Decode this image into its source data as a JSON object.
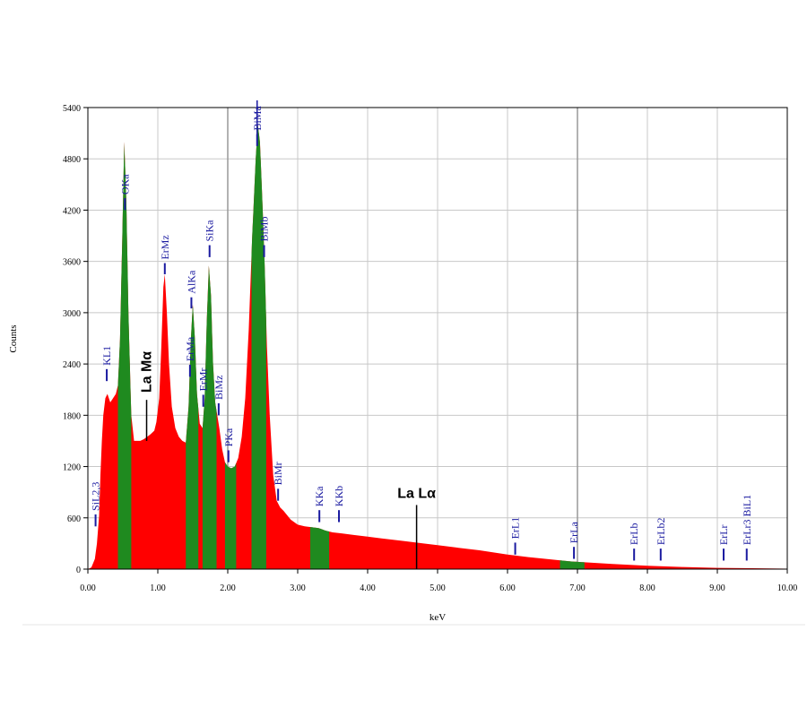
{
  "chart_data": {
    "type": "area",
    "xlabel": "keV",
    "ylabel": "Counts",
    "xlim": [
      0,
      10
    ],
    "ylim": [
      0,
      5400
    ],
    "x_ticks": [
      "0.00",
      "1.00",
      "2.00",
      "3.00",
      "4.00",
      "5.00",
      "6.00",
      "7.00",
      "8.00",
      "9.00",
      "10.00"
    ],
    "y_ticks": [
      "0",
      "600",
      "1200",
      "1800",
      "2400",
      "3000",
      "3600",
      "4200",
      "4800",
      "5400"
    ],
    "grid": true,
    "colors": {
      "spectrum": "#ff0000",
      "peak_region": "#1f8a1f",
      "peak_marker": "#1a1aa0",
      "annotation": "#000000"
    },
    "spectrum": [
      [
        0.0,
        0
      ],
      [
        0.05,
        20
      ],
      [
        0.1,
        120
      ],
      [
        0.13,
        300
      ],
      [
        0.16,
        620
      ],
      [
        0.18,
        1100
      ],
      [
        0.2,
        1500
      ],
      [
        0.22,
        1800
      ],
      [
        0.25,
        2000
      ],
      [
        0.28,
        2050
      ],
      [
        0.32,
        1950
      ],
      [
        0.36,
        2000
      ],
      [
        0.4,
        2050
      ],
      [
        0.43,
        2150
      ],
      [
        0.46,
        2700
      ],
      [
        0.49,
        3800
      ],
      [
        0.52,
        5000
      ],
      [
        0.55,
        4300
      ],
      [
        0.58,
        3000
      ],
      [
        0.62,
        1800
      ],
      [
        0.66,
        1500
      ],
      [
        0.7,
        1500
      ],
      [
        0.75,
        1500
      ],
      [
        0.8,
        1520
      ],
      [
        0.85,
        1550
      ],
      [
        0.9,
        1580
      ],
      [
        0.95,
        1620
      ],
      [
        0.98,
        1720
      ],
      [
        1.02,
        2000
      ],
      [
        1.05,
        2600
      ],
      [
        1.08,
        3300
      ],
      [
        1.1,
        3450
      ],
      [
        1.13,
        3000
      ],
      [
        1.16,
        2400
      ],
      [
        1.2,
        1900
      ],
      [
        1.25,
        1650
      ],
      [
        1.3,
        1550
      ],
      [
        1.35,
        1500
      ],
      [
        1.4,
        1480
      ],
      [
        1.44,
        1900
      ],
      [
        1.47,
        2650
      ],
      [
        1.5,
        3100
      ],
      [
        1.53,
        2700
      ],
      [
        1.56,
        2050
      ],
      [
        1.6,
        1700
      ],
      [
        1.64,
        1650
      ],
      [
        1.67,
        2000
      ],
      [
        1.7,
        2900
      ],
      [
        1.73,
        3550
      ],
      [
        1.76,
        3200
      ],
      [
        1.79,
        2400
      ],
      [
        1.82,
        1950
      ],
      [
        1.85,
        1800
      ],
      [
        1.88,
        1650
      ],
      [
        1.92,
        1400
      ],
      [
        1.96,
        1250
      ],
      [
        2.0,
        1200
      ],
      [
        2.05,
        1180
      ],
      [
        2.1,
        1200
      ],
      [
        2.15,
        1300
      ],
      [
        2.2,
        1550
      ],
      [
        2.25,
        2000
      ],
      [
        2.3,
        2800
      ],
      [
        2.35,
        3900
      ],
      [
        2.4,
        4800
      ],
      [
        2.43,
        5200
      ],
      [
        2.46,
        5000
      ],
      [
        2.5,
        4200
      ],
      [
        2.53,
        3500
      ],
      [
        2.56,
        2600
      ],
      [
        2.6,
        1800
      ],
      [
        2.65,
        1100
      ],
      [
        2.7,
        800
      ],
      [
        2.75,
        720
      ],
      [
        2.8,
        680
      ],
      [
        2.9,
        580
      ],
      [
        3.0,
        520
      ],
      [
        3.1,
        500
      ],
      [
        3.2,
        490
      ],
      [
        3.3,
        480
      ],
      [
        3.4,
        450
      ],
      [
        3.5,
        430
      ],
      [
        3.6,
        420
      ],
      [
        3.8,
        400
      ],
      [
        4.0,
        380
      ],
      [
        4.2,
        360
      ],
      [
        4.5,
        330
      ],
      [
        4.8,
        300
      ],
      [
        5.0,
        280
      ],
      [
        5.3,
        250
      ],
      [
        5.6,
        220
      ],
      [
        6.0,
        170
      ],
      [
        6.3,
        140
      ],
      [
        6.6,
        115
      ],
      [
        6.9,
        90
      ],
      [
        7.0,
        85
      ],
      [
        7.5,
        60
      ],
      [
        8.0,
        40
      ],
      [
        8.5,
        25
      ],
      [
        9.0,
        15
      ],
      [
        9.5,
        10
      ],
      [
        10.0,
        5
      ]
    ],
    "green_regions": [
      [
        0.43,
        0.62
      ],
      [
        1.4,
        1.58
      ],
      [
        1.64,
        1.84
      ],
      [
        1.96,
        2.12
      ],
      [
        2.34,
        2.55
      ],
      [
        3.18,
        3.45
      ],
      [
        6.75,
        7.1
      ]
    ],
    "peak_labels": [
      {
        "text": "SiL2,3",
        "x": 0.11,
        "y_tip": 500,
        "y_top": 640
      },
      {
        "text": "KL1",
        "x": 0.27,
        "y_tip": 2200,
        "y_top": 2340
      },
      {
        "text": "OKa",
        "x": 0.53,
        "y_tip": 4200,
        "y_top": 4340
      },
      {
        "text": "ErMz",
        "x": 1.1,
        "y_tip": 3450,
        "y_top": 3580
      },
      {
        "text": "AlKa",
        "x": 1.48,
        "y_tip": 3050,
        "y_top": 3180
      },
      {
        "text": "ErMa",
        "x": 1.46,
        "y_tip": 2250,
        "y_top": 2390
      },
      {
        "text": "ErMr",
        "x": 1.65,
        "y_tip": 1900,
        "y_top": 2040
      },
      {
        "text": "SiKa",
        "x": 1.74,
        "y_tip": 3650,
        "y_top": 3790
      },
      {
        "text": "BiMz",
        "x": 1.87,
        "y_tip": 1800,
        "y_top": 1940
      },
      {
        "text": "PKa",
        "x": 2.01,
        "y_tip": 1250,
        "y_top": 1390
      },
      {
        "text": "BiMa",
        "x": 2.42,
        "y_tip": 4950,
        "y_top": 5090
      },
      {
        "text": "BiMb",
        "x": 2.52,
        "y_tip": 3650,
        "y_top": 3790
      },
      {
        "text": "BiMr",
        "x": 2.72,
        "y_tip": 800,
        "y_top": 940
      },
      {
        "text": "KKa",
        "x": 3.31,
        "y_tip": 550,
        "y_top": 690
      },
      {
        "text": "KKb",
        "x": 3.59,
        "y_tip": 550,
        "y_top": 690
      },
      {
        "text": "ErL1",
        "x": 6.11,
        "y_tip": 170,
        "y_top": 310
      },
      {
        "text": "ErLa",
        "x": 6.95,
        "y_tip": 120,
        "y_top": 260
      },
      {
        "text": "ErLb",
        "x": 7.81,
        "y_tip": 100,
        "y_top": 240
      },
      {
        "text": "ErLb2",
        "x": 8.19,
        "y_tip": 100,
        "y_top": 240
      },
      {
        "text": "ErLr",
        "x": 9.09,
        "y_tip": 100,
        "y_top": 240
      },
      {
        "text": "ErLr3 BiL1",
        "x": 9.42,
        "y_tip": 100,
        "y_top": 240
      }
    ],
    "annotations": [
      {
        "text": "La Mα",
        "x": 0.84,
        "y_bottom": 1500,
        "y_top": 1980
      },
      {
        "text": "La Lα",
        "x": 4.7,
        "y_bottom": 0,
        "y_top": 750
      }
    ],
    "highlight_lines": [
      2.42
    ]
  }
}
